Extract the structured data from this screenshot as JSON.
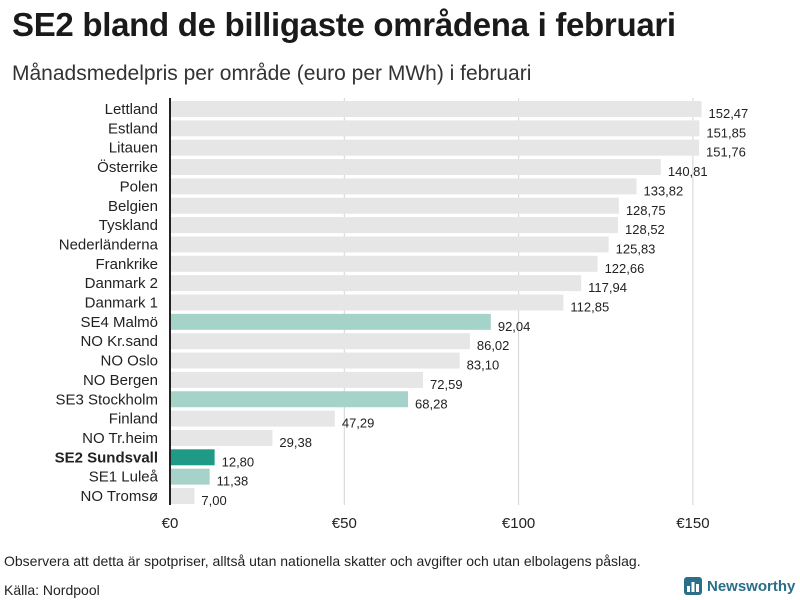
{
  "header": {
    "title": "SE2 bland de billigaste områdena i februari",
    "subtitle": "Månadsmedelpris per område (euro per MWh) i februari"
  },
  "footer": {
    "note": "Observera att detta är spotpriser, alltså utan nationella skatter och avgifter och utan elbolagens påslag.",
    "source": "Källa: Nordpool",
    "brand": "Newsworthy"
  },
  "colors": {
    "default_bar": "#e6e6e6",
    "se_bar": "#a6d3c9",
    "highlight_bar": "#1f9a87",
    "axis": "#222222",
    "grid": "#d4d4d4",
    "brand": "#2a6f8a"
  },
  "chart_data": {
    "type": "bar",
    "orientation": "horizontal",
    "title": "Månadsmedelpris per område (euro per MWh) i februari",
    "xlim": [
      0,
      155
    ],
    "x_ticks": [
      0,
      50,
      100,
      150
    ],
    "x_tick_labels": [
      "€0",
      "€50",
      "€100",
      "€150"
    ],
    "grid": true,
    "highlight": "SE2 Sundsvall",
    "categories": [
      "Lettland",
      "Estland",
      "Litauen",
      "Österrike",
      "Polen",
      "Belgien",
      "Tyskland",
      "Nederländerna",
      "Frankrike",
      "Danmark 2",
      "Danmark 1",
      "SE4 Malmö",
      "NO Kr.sand",
      "NO Oslo",
      "NO Bergen",
      "SE3 Stockholm",
      "Finland",
      "NO Tr.heim",
      "SE2 Sundsvall",
      "SE1 Luleå",
      "NO Tromsø"
    ],
    "values": [
      152.47,
      151.85,
      151.76,
      140.81,
      133.82,
      128.75,
      128.52,
      125.83,
      122.66,
      117.94,
      112.85,
      92.04,
      86.02,
      83.1,
      72.59,
      68.28,
      47.29,
      29.38,
      12.8,
      11.38,
      7.0
    ],
    "value_labels": [
      "152,47",
      "151,85",
      "151,76",
      "140,81",
      "133,82",
      "128,75",
      "128,52",
      "125,83",
      "122,66",
      "117,94",
      "112,85",
      "92,04",
      "86,02",
      "83,10",
      "72,59",
      "68,28",
      "47,29",
      "29,38",
      "12,80",
      "11,38",
      "7,00"
    ],
    "bar_color_groups": [
      "default",
      "default",
      "default",
      "default",
      "default",
      "default",
      "default",
      "default",
      "default",
      "default",
      "default",
      "se",
      "default",
      "default",
      "default",
      "se",
      "default",
      "default",
      "highlight",
      "se",
      "default"
    ]
  }
}
